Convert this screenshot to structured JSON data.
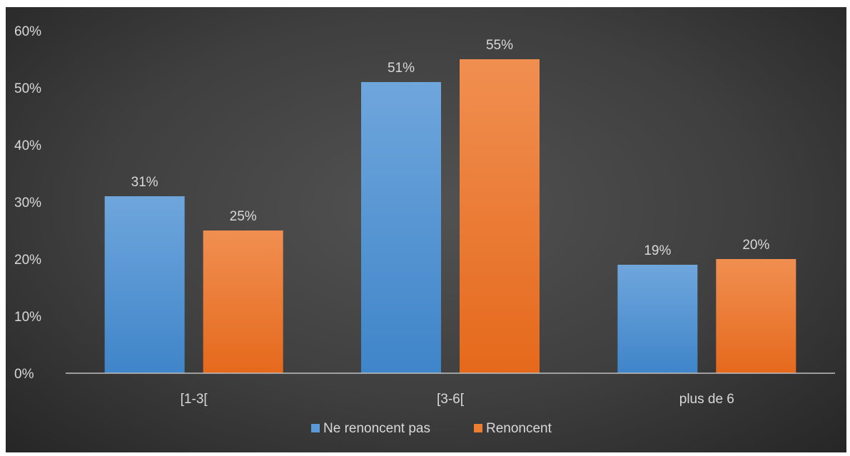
{
  "chart_data": {
    "type": "bar",
    "categories": [
      "[1-3[",
      "[3-6[",
      "plus de 6"
    ],
    "series": [
      {
        "name": "Ne renoncent pas",
        "values": [
          31,
          51,
          19
        ],
        "labels": [
          "31%",
          "51%",
          "19%"
        ],
        "color": "#5b9bd5"
      },
      {
        "name": "Renoncent",
        "values": [
          25,
          55,
          20
        ],
        "labels": [
          "25%",
          "55%",
          "20%"
        ],
        "color": "#ed7d31"
      }
    ],
    "y_ticks": [
      "0%",
      "10%",
      "20%",
      "30%",
      "40%",
      "50%",
      "60%"
    ],
    "ylim": [
      0,
      60
    ],
    "grid": false,
    "legend": "bottom",
    "title": "",
    "xlabel": "",
    "ylabel": ""
  }
}
